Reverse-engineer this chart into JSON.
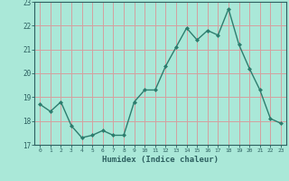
{
  "x": [
    0,
    1,
    2,
    3,
    4,
    5,
    6,
    7,
    8,
    9,
    10,
    11,
    12,
    13,
    14,
    15,
    16,
    17,
    18,
    19,
    20,
    21,
    22,
    23
  ],
  "y": [
    18.7,
    18.4,
    18.8,
    17.8,
    17.3,
    17.4,
    17.6,
    17.4,
    17.4,
    18.8,
    19.3,
    19.3,
    20.3,
    21.1,
    21.9,
    21.4,
    21.8,
    21.6,
    22.7,
    21.2,
    20.2,
    19.3,
    18.1,
    17.9
  ],
  "xlabel": "Humidex (Indice chaleur)",
  "ylim": [
    17,
    23
  ],
  "xlim": [
    -0.5,
    23.5
  ],
  "yticks": [
    17,
    18,
    19,
    20,
    21,
    22,
    23
  ],
  "xticks": [
    0,
    1,
    2,
    3,
    4,
    5,
    6,
    7,
    8,
    9,
    10,
    11,
    12,
    13,
    14,
    15,
    16,
    17,
    18,
    19,
    20,
    21,
    22,
    23
  ],
  "line_color": "#2d7d6e",
  "marker": "D",
  "marker_size": 2.0,
  "bg_color": "#aae8d8",
  "grid_color": "#d4a0a0",
  "axes_color": "#2d6060",
  "tick_label_color": "#2d6060",
  "xlabel_color": "#2d6060",
  "line_width": 1.0
}
